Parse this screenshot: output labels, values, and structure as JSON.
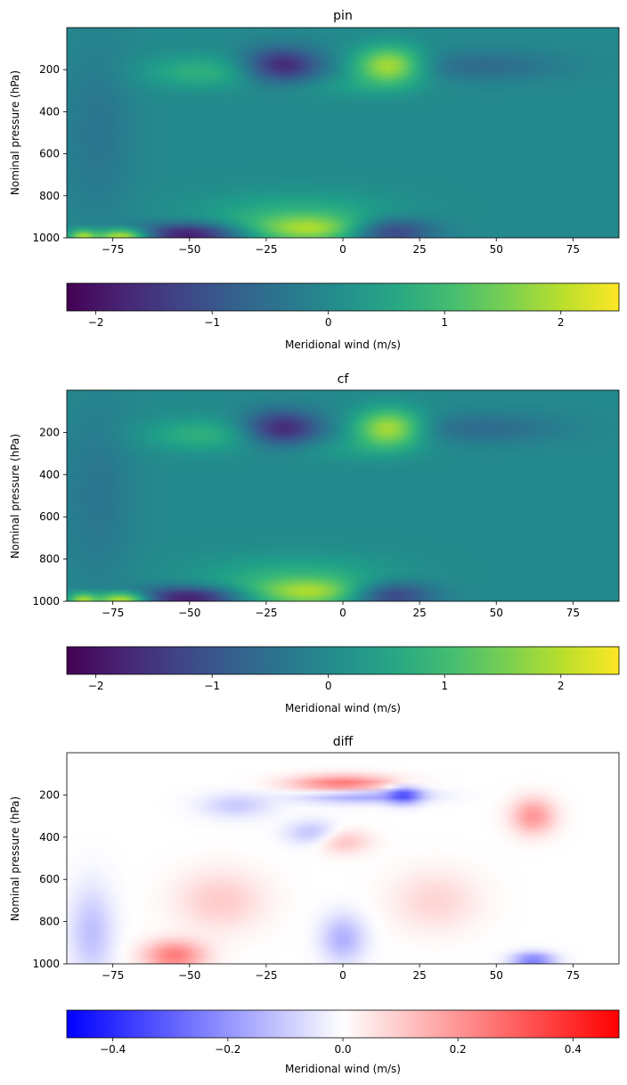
{
  "chart_data": [
    {
      "type": "heatmap",
      "title": "pin",
      "ylabel": "Nominal pressure (hPa)",
      "xlabel": "",
      "x_ticks": [
        -75,
        -50,
        -25,
        0,
        25,
        50,
        75
      ],
      "x_tick_labels": [
        "−75",
        "−50",
        "−25",
        "0",
        "25",
        "50",
        "75"
      ],
      "y_ticks": [
        200,
        400,
        600,
        800,
        1000
      ],
      "y_tick_labels": [
        "200",
        "400",
        "600",
        "800",
        "1000"
      ],
      "xlim": [
        -90,
        90
      ],
      "ylim": [
        1000,
        0
      ],
      "colormap": "viridis",
      "colorbar": {
        "label": "Meridional wind (m/s)",
        "range": [
          -2.25,
          2.5
        ],
        "ticks": [
          -2,
          -1,
          0,
          1,
          2
        ],
        "tick_labels": [
          "−2",
          "−1",
          "0",
          "1",
          "2"
        ]
      },
      "features": [
        {
          "lat": -10,
          "p": 960,
          "value": 1.4,
          "wlat": 14,
          "wp": 45
        },
        {
          "lat": -15,
          "p": 900,
          "value": 0.8,
          "wlat": 22,
          "wp": 80
        },
        {
          "lat": 15,
          "p": 970,
          "value": -1.6,
          "wlat": 10,
          "wp": 45
        },
        {
          "lat": -50,
          "p": 980,
          "value": -2.0,
          "wlat": 12,
          "wp": 35
        },
        {
          "lat": -72,
          "p": 985,
          "value": 2.3,
          "wlat": 6,
          "wp": 20
        },
        {
          "lat": -85,
          "p": 985,
          "value": 1.8,
          "wlat": 3,
          "wp": 18
        },
        {
          "lat": -20,
          "p": 180,
          "value": -1.8,
          "wlat": 9,
          "wp": 60
        },
        {
          "lat": 15,
          "p": 180,
          "value": 2.0,
          "wlat": 8,
          "wp": 65
        },
        {
          "lat": -45,
          "p": 210,
          "value": 0.8,
          "wlat": 14,
          "wp": 55
        },
        {
          "lat": 45,
          "p": 180,
          "value": -0.6,
          "wlat": 18,
          "wp": 50
        },
        {
          "lat": -80,
          "p": 500,
          "value": -0.4,
          "wlat": 8,
          "wp": 300
        },
        {
          "lat": 0,
          "p": 280,
          "value": 0.3,
          "wlat": 15,
          "wp": 40
        }
      ]
    },
    {
      "type": "heatmap",
      "title": "cf",
      "ylabel": "Nominal pressure (hPa)",
      "xlabel": "",
      "x_ticks": [
        -75,
        -50,
        -25,
        0,
        25,
        50,
        75
      ],
      "x_tick_labels": [
        "−75",
        "−50",
        "−25",
        "0",
        "25",
        "50",
        "75"
      ],
      "y_ticks": [
        200,
        400,
        600,
        800,
        1000
      ],
      "y_tick_labels": [
        "200",
        "400",
        "600",
        "800",
        "1000"
      ],
      "xlim": [
        -90,
        90
      ],
      "ylim": [
        1000,
        0
      ],
      "colormap": "viridis",
      "colorbar": {
        "label": "Meridional wind (m/s)",
        "range": [
          -2.25,
          2.5
        ],
        "ticks": [
          -2,
          -1,
          0,
          1,
          2
        ],
        "tick_labels": [
          "−2",
          "−1",
          "0",
          "1",
          "2"
        ]
      },
      "features": [
        {
          "lat": -10,
          "p": 960,
          "value": 1.4,
          "wlat": 14,
          "wp": 45
        },
        {
          "lat": -15,
          "p": 900,
          "value": 0.8,
          "wlat": 22,
          "wp": 80
        },
        {
          "lat": 15,
          "p": 970,
          "value": -1.6,
          "wlat": 10,
          "wp": 45
        },
        {
          "lat": -50,
          "p": 980,
          "value": -2.0,
          "wlat": 12,
          "wp": 35
        },
        {
          "lat": -72,
          "p": 985,
          "value": 2.3,
          "wlat": 6,
          "wp": 20
        },
        {
          "lat": -85,
          "p": 985,
          "value": 1.8,
          "wlat": 3,
          "wp": 18
        },
        {
          "lat": -20,
          "p": 180,
          "value": -1.8,
          "wlat": 9,
          "wp": 60
        },
        {
          "lat": 15,
          "p": 180,
          "value": 2.0,
          "wlat": 8,
          "wp": 65
        },
        {
          "lat": -45,
          "p": 210,
          "value": 0.8,
          "wlat": 14,
          "wp": 55
        },
        {
          "lat": 45,
          "p": 180,
          "value": -0.6,
          "wlat": 18,
          "wp": 50
        },
        {
          "lat": -80,
          "p": 500,
          "value": -0.4,
          "wlat": 8,
          "wp": 300
        },
        {
          "lat": 0,
          "p": 280,
          "value": 0.3,
          "wlat": 15,
          "wp": 40
        }
      ]
    },
    {
      "type": "heatmap",
      "title": "diff",
      "ylabel": "Nominal pressure (hPa)",
      "xlabel": "",
      "x_ticks": [
        -75,
        -50,
        -25,
        0,
        25,
        50,
        75
      ],
      "x_tick_labels": [
        "−75",
        "−50",
        "−25",
        "0",
        "25",
        "50",
        "75"
      ],
      "y_ticks": [
        200,
        400,
        600,
        800,
        1000
      ],
      "y_tick_labels": [
        "200",
        "400",
        "600",
        "800",
        "1000"
      ],
      "xlim": [
        -90,
        90
      ],
      "ylim": [
        1000,
        0
      ],
      "colormap": "bwr",
      "colorbar": {
        "label": "Meridional wind (m/s)",
        "range": [
          -0.48,
          0.48
        ],
        "ticks": [
          -0.4,
          -0.2,
          0.0,
          0.2,
          0.4
        ],
        "tick_labels": [
          "−0.4",
          "−0.2",
          "0.0",
          "0.2",
          "0.4"
        ]
      },
      "features": [
        {
          "lat": 0,
          "p": 150,
          "value": 0.28,
          "wlat": 12,
          "wp": 30
        },
        {
          "lat": 5,
          "p": 200,
          "value": -0.22,
          "wlat": 14,
          "wp": 25
        },
        {
          "lat": 20,
          "p": 200,
          "value": -0.25,
          "wlat": 4,
          "wp": 30
        },
        {
          "lat": -55,
          "p": 960,
          "value": 0.25,
          "wlat": 7,
          "wp": 50
        },
        {
          "lat": 62,
          "p": 980,
          "value": -0.25,
          "wlat": 5,
          "wp": 25
        },
        {
          "lat": 62,
          "p": 300,
          "value": 0.2,
          "wlat": 5,
          "wp": 60
        },
        {
          "lat": 0,
          "p": 880,
          "value": -0.15,
          "wlat": 5,
          "wp": 80
        },
        {
          "lat": -82,
          "p": 850,
          "value": -0.12,
          "wlat": 5,
          "wp": 150
        },
        {
          "lat": -10,
          "p": 380,
          "value": -0.12,
          "wlat": 6,
          "wp": 40
        },
        {
          "lat": 0,
          "p": 420,
          "value": 0.12,
          "wlat": 6,
          "wp": 40
        },
        {
          "lat": -40,
          "p": 700,
          "value": 0.1,
          "wlat": 10,
          "wp": 100
        },
        {
          "lat": 30,
          "p": 700,
          "value": 0.08,
          "wlat": 10,
          "wp": 100
        },
        {
          "lat": -35,
          "p": 250,
          "value": -0.1,
          "wlat": 8,
          "wp": 40
        }
      ]
    }
  ]
}
